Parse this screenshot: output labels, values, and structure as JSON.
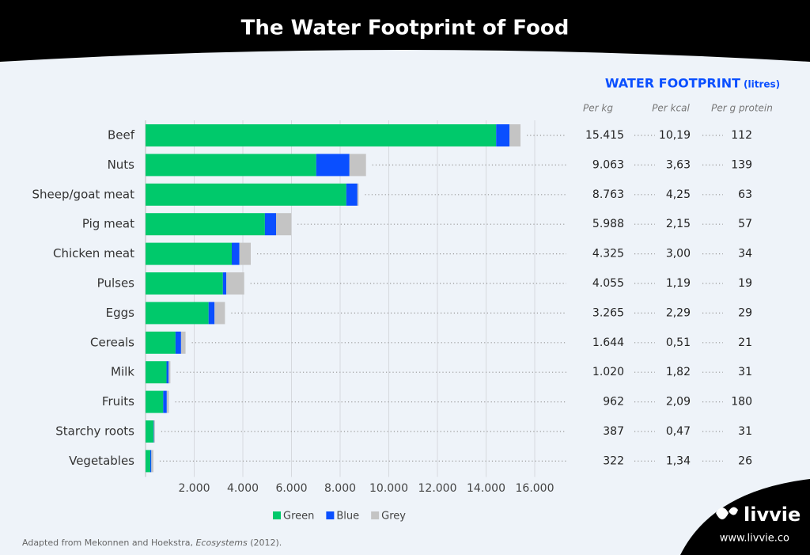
{
  "chart_data": {
    "type": "bar",
    "orientation": "horizontal",
    "stacked": true,
    "title": "The Water Footprint of Food",
    "categories": [
      "Beef",
      "Nuts",
      "Sheep/goat meat",
      "Pig meat",
      "Chicken meat",
      "Pulses",
      "Eggs",
      "Cereals",
      "Milk",
      "Fruits",
      "Starchy roots",
      "Vegetables"
    ],
    "series": [
      {
        "name": "Green",
        "color": "#00c96b",
        "values": [
          14414,
          7016,
          8253,
          4907,
          3545,
          3180,
          2592,
          1232,
          863,
          726,
          327,
          194
        ]
      },
      {
        "name": "Blue",
        "color": "#0a4fff",
        "values": [
          550,
          1367,
          457,
          459,
          313,
          141,
          244,
          228,
          86,
          147,
          16,
          43
        ]
      },
      {
        "name": "Grey",
        "color": "#c4c4c4",
        "values": [
          451,
          680,
          53,
          622,
          467,
          734,
          429,
          184,
          72,
          89,
          43,
          85
        ]
      }
    ],
    "xlim": [
      0,
      16000
    ],
    "xticks": [
      {
        "value": 2000,
        "label": "2.000"
      },
      {
        "value": 4000,
        "label": "4.000"
      },
      {
        "value": 6000,
        "label": "6.000"
      },
      {
        "value": 8000,
        "label": "8.000"
      },
      {
        "value": 10000,
        "label": "10.000"
      },
      {
        "value": 12000,
        "label": "12.000"
      },
      {
        "value": 14000,
        "label": "14.000"
      },
      {
        "value": 16000,
        "label": "16.000"
      }
    ],
    "grid": true,
    "legend": "bottom",
    "table": {
      "title": "WATER FOOTPRINT",
      "unit": "(litres)",
      "columns": [
        "Per kg",
        "Per kcal",
        "Per g protein"
      ],
      "rows": [
        [
          "15.415",
          "10,19",
          "112"
        ],
        [
          "9.063",
          "3,63",
          "139"
        ],
        [
          "8.763",
          "4,25",
          "63"
        ],
        [
          "5.988",
          "2,15",
          "57"
        ],
        [
          "4.325",
          "3,00",
          "34"
        ],
        [
          "4.055",
          "1,19",
          "19"
        ],
        [
          "3.265",
          "2,29",
          "29"
        ],
        [
          "1.644",
          "0,51",
          "21"
        ],
        [
          "1.020",
          "1,82",
          "31"
        ],
        [
          "962",
          "2,09",
          "180"
        ],
        [
          "387",
          "0,47",
          "31"
        ],
        [
          "322",
          "1,34",
          "26"
        ]
      ]
    },
    "source": {
      "before": "Adapted from Mekonnen and Hoekstra, ",
      "italic": "Ecosystems",
      "after": " (2012)."
    },
    "brand": {
      "name": "livvie",
      "url": "www.livvie.co"
    }
  }
}
